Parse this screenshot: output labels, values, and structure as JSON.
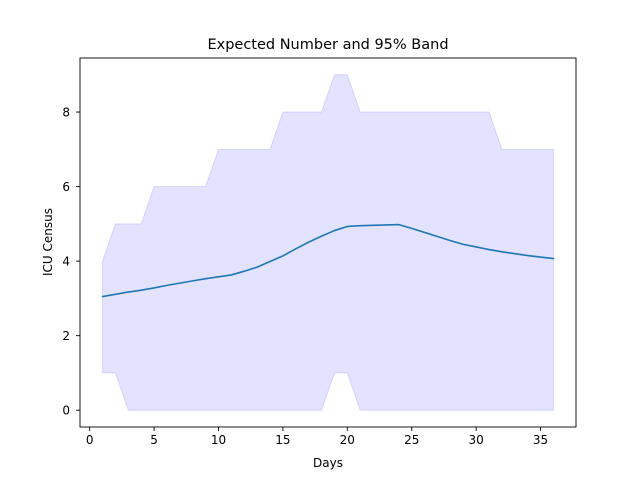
{
  "chart_data": {
    "type": "line",
    "title": "Expected Number and 95% Band",
    "xlabel": "Days",
    "ylabel": "ICU Census",
    "xlim": [
      -0.75,
      37.75
    ],
    "ylim": [
      -0.45,
      9.45
    ],
    "x_ticks": [
      0,
      5,
      10,
      15,
      20,
      25,
      30,
      35
    ],
    "y_ticks": [
      0,
      2,
      4,
      6,
      8
    ],
    "grid": false,
    "legend": "none",
    "colors": {
      "line": "#1f77b4",
      "band_fill": "#0000ff",
      "band_fill_opacity": 0.11
    },
    "x": [
      1,
      2,
      3,
      4,
      5,
      6,
      7,
      8,
      9,
      10,
      11,
      12,
      13,
      14,
      15,
      16,
      17,
      18,
      19,
      20,
      21,
      22,
      23,
      24,
      25,
      26,
      27,
      28,
      29,
      30,
      31,
      32,
      33,
      34,
      35,
      36
    ],
    "series": [
      {
        "values": [
          3.05,
          3.11,
          3.17,
          3.22,
          3.28,
          3.35,
          3.41,
          3.47,
          3.53,
          3.58,
          3.63,
          3.73,
          3.84,
          3.99,
          4.14,
          4.33,
          4.51,
          4.67,
          4.82,
          4.93,
          4.95,
          4.96,
          4.97,
          4.98,
          4.88,
          4.77,
          4.66,
          4.55,
          4.45,
          4.38,
          4.31,
          4.25,
          4.2,
          4.15,
          4.11,
          4.07
        ]
      }
    ],
    "band": {
      "lower": [
        1,
        1,
        0,
        0,
        0,
        0,
        0,
        0,
        0,
        0,
        0,
        0,
        0,
        0,
        0,
        0,
        0,
        0,
        1,
        1,
        0,
        0,
        0,
        0,
        0,
        0,
        0,
        0,
        0,
        0,
        0,
        0,
        0,
        0,
        0,
        0
      ],
      "upper": [
        4,
        5,
        5,
        5,
        6,
        6,
        6,
        6,
        6,
        7,
        7,
        7,
        7,
        7,
        8,
        8,
        8,
        8,
        9,
        9,
        8,
        8,
        8,
        8,
        8,
        8,
        8,
        8,
        8,
        8,
        8,
        7,
        7,
        7,
        7,
        7
      ]
    }
  }
}
